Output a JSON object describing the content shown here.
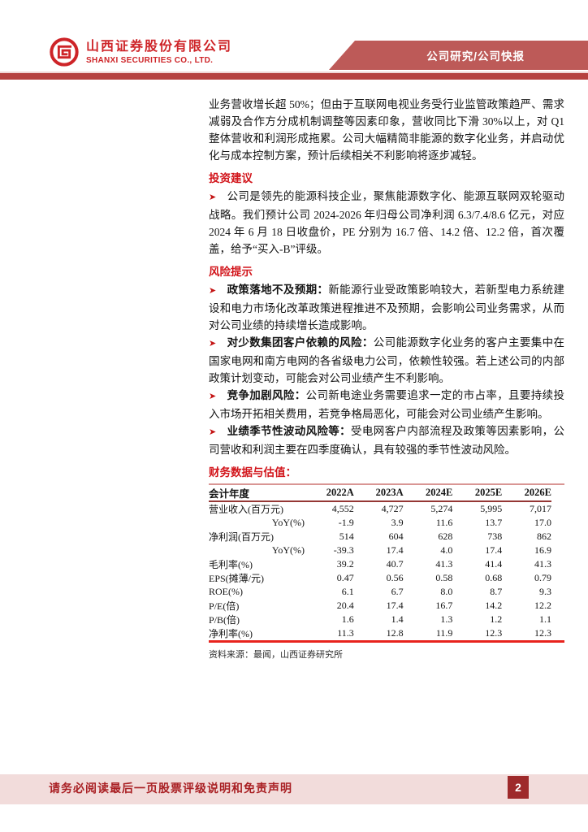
{
  "header": {
    "company_name_cn": "山西证券股份有限公司",
    "company_name_en": "SHANXI SECURITIES CO., LTD.",
    "banner_label": "公司研究/公司快报"
  },
  "glyphs": {
    "bullet_arrow": "➤"
  },
  "colors": {
    "brand_red": "#CE2428",
    "banner_red": "#BD5A58",
    "rule_red": "#B64240",
    "heading_red": "#D2151B",
    "table_top_border": "#D99694",
    "table_header_border": "#953735",
    "table_bottom_border": "#E8231D",
    "footer_band": "#F2DCDB",
    "footer_text": "#A92024",
    "page_badge": "#9E2A2B"
  },
  "body": {
    "intro_paragraph": "业务营收增长超 50%；但由于互联网电视业务受行业监管政策趋严、需求减弱及合作方分成机制调整等因素印象，营收同比下滑 30%以上，对 Q1 整体营收和利润形成拖累。公司大幅精简非能源的数字化业务，并启动优化与成本控制方案，预计后续相关不利影响将逐步减轻。",
    "sections": [
      {
        "heading": "投资建议",
        "bullets": [
          {
            "label": "",
            "text": "公司是领先的能源科技企业，聚焦能源数字化、能源互联网双轮驱动战略。我们预计公司 2024-2026 年归母公司净利润 6.3/7.4/8.6 亿元，对应 2024 年 6 月 18 日收盘价，PE 分别为 16.7 倍、14.2 倍、12.2 倍，首次覆盖，给予“买入-B”评级。"
          }
        ]
      },
      {
        "heading": "风险提示",
        "bullets": [
          {
            "label": "政策落地不及预期：",
            "text": "新能源行业受政策影响较大，若新型电力系统建设和电力市场化改革政策进程推进不及预期，会影响公司业务需求，从而对公司业绩的持续增长造成影响。"
          },
          {
            "label": "对少数集团客户依赖的风险：",
            "text": "公司能源数字化业务的客户主要集中在国家电网和南方电网的各省级电力公司，依赖性较强。若上述公司的内部政策计划变动，可能会对公司业绩产生不利影响。"
          },
          {
            "label": "竞争加剧风险：",
            "text": "公司新电途业务需要追求一定的市占率，且要持续投入市场开拓相关费用，若竞争格局恶化，可能会对公司业绩产生影响。"
          },
          {
            "label": "业绩季节性波动风险等：",
            "text": "受电网客户内部流程及政策等因素影响，公司营收和利润主要在四季度确认，具有较强的季节性波动风险。"
          }
        ]
      }
    ]
  },
  "financials": {
    "heading": "财务数据与估值：",
    "table": {
      "columns": [
        "会计年度",
        "2022A",
        "2023A",
        "2024E",
        "2025E",
        "2026E"
      ],
      "rows": [
        {
          "indent": false,
          "cells": [
            "营业收入(百万元)",
            "4,552",
            "4,727",
            "5,274",
            "5,995",
            "7,017"
          ]
        },
        {
          "indent": true,
          "cells": [
            "YoY(%)",
            "-1.9",
            "3.9",
            "11.6",
            "13.7",
            "17.0"
          ]
        },
        {
          "indent": false,
          "cells": [
            "净利润(百万元)",
            "514",
            "604",
            "628",
            "738",
            "862"
          ]
        },
        {
          "indent": true,
          "cells": [
            "YoY(%)",
            "-39.3",
            "17.4",
            "4.0",
            "17.4",
            "16.9"
          ]
        },
        {
          "indent": false,
          "cells": [
            "毛利率(%)",
            "39.2",
            "40.7",
            "41.3",
            "41.4",
            "41.3"
          ]
        },
        {
          "indent": false,
          "cells": [
            "EPS(摊薄/元)",
            "0.47",
            "0.56",
            "0.58",
            "0.68",
            "0.79"
          ]
        },
        {
          "indent": false,
          "cells": [
            "ROE(%)",
            "6.1",
            "6.7",
            "8.0",
            "8.7",
            "9.3"
          ]
        },
        {
          "indent": false,
          "cells": [
            "P/E(倍)",
            "20.4",
            "17.4",
            "16.7",
            "14.2",
            "12.2"
          ]
        },
        {
          "indent": false,
          "cells": [
            "P/B(倍)",
            "1.6",
            "1.4",
            "1.3",
            "1.2",
            "1.1"
          ]
        },
        {
          "indent": false,
          "cells": [
            "净利率(%)",
            "11.3",
            "12.8",
            "11.9",
            "12.3",
            "12.3"
          ]
        }
      ]
    },
    "source": "资料来源：最闻，山西证券研究所"
  },
  "footer": {
    "disclaimer": "请务必阅读最后一页股票评级说明和免责声明",
    "page_number": "2"
  }
}
